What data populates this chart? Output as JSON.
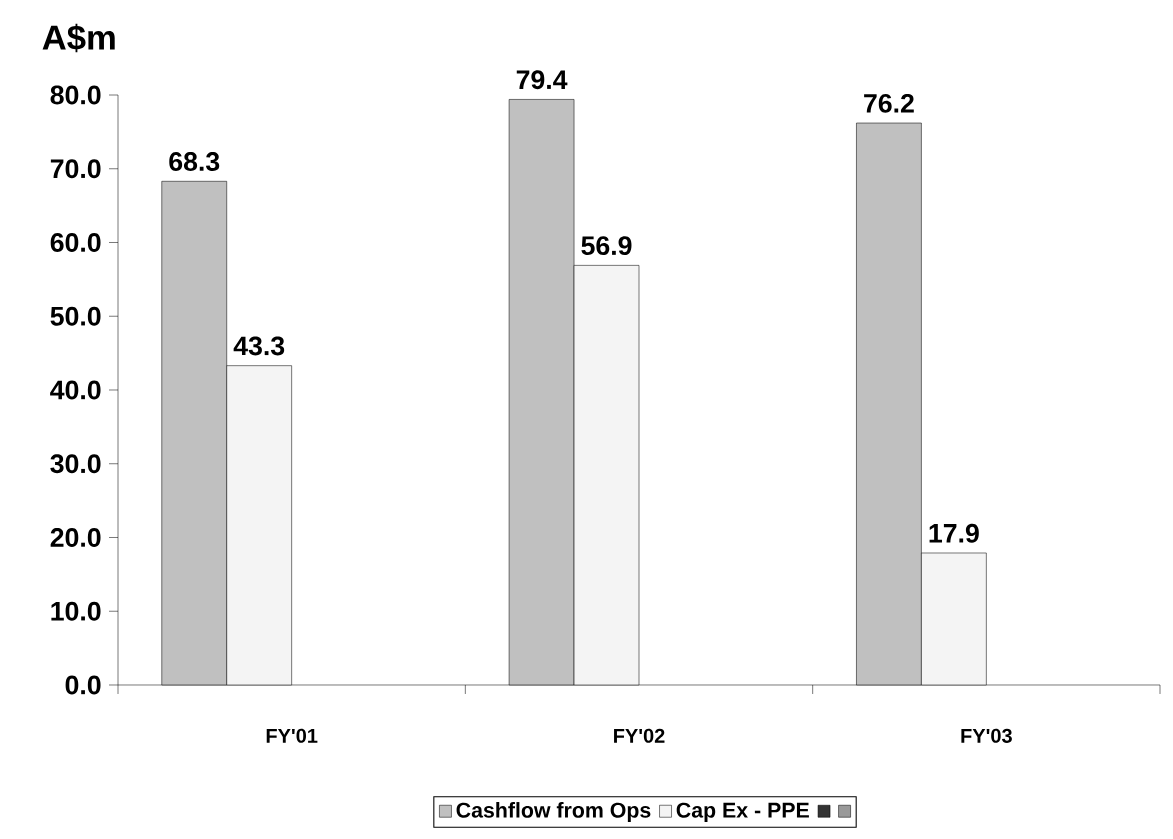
{
  "chart_data": {
    "type": "bar",
    "ylabel": "A$m",
    "categories": [
      "FY'01",
      "FY'02",
      "FY'03"
    ],
    "series": [
      {
        "name": "Cashflow from Ops",
        "color": "#c0c0c0",
        "values": [
          68.3,
          79.4,
          76.2
        ]
      },
      {
        "name": "Cap Ex - PPE",
        "color": "#f4f4f4",
        "values": [
          43.3,
          56.9,
          17.9
        ]
      },
      {
        "color": "#333333",
        "values": [
          null,
          null,
          null
        ]
      },
      {
        "color": "#999999",
        "values": [
          null,
          null,
          null
        ]
      }
    ],
    "ylim": [
      0,
      80
    ],
    "yticks": [
      {
        "value": 0,
        "label": "0.0"
      },
      {
        "value": 10,
        "label": "10.0"
      },
      {
        "value": 20,
        "label": "20.0"
      },
      {
        "value": 30,
        "label": "30.0"
      },
      {
        "value": 40,
        "label": "40.0"
      },
      {
        "value": 50,
        "label": "50.0"
      },
      {
        "value": 60,
        "label": "60.0"
      },
      {
        "value": 70,
        "label": "70.0"
      },
      {
        "value": 80,
        "label": "80.0"
      }
    ],
    "data_labels": true,
    "legend": "bottom"
  }
}
